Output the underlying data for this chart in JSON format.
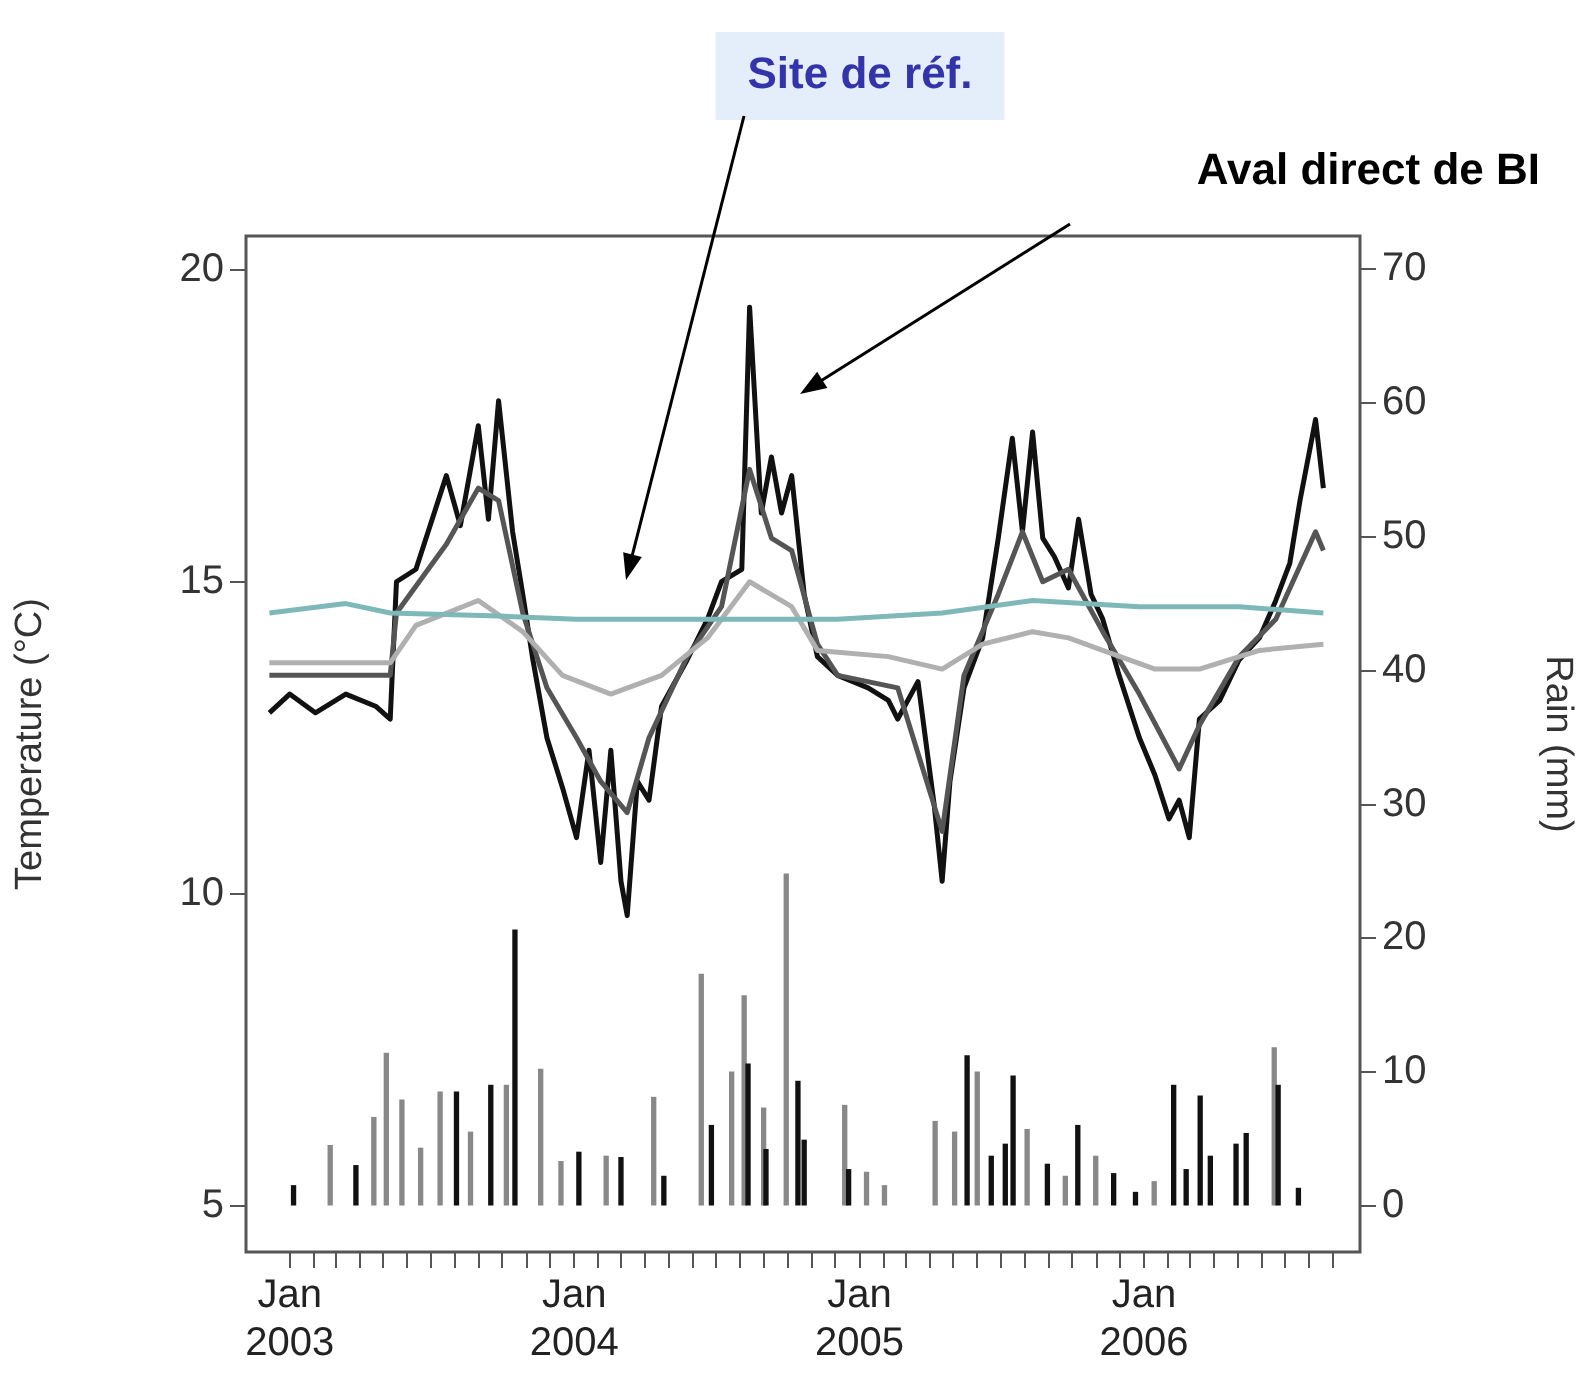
{
  "chart_data": {
    "type": "line",
    "ylabel": "Temperature (°C)",
    "y2label": "Rain (mm)",
    "xlim": [
      "2002-11-06",
      "2006-10-05"
    ],
    "ylim": [
      4.26,
      20.54
    ],
    "yticks": [
      5,
      10,
      15,
      20
    ],
    "y2lim": [
      -3.45,
      72.5
    ],
    "y2ticks": [
      0,
      10,
      20,
      30,
      40,
      50,
      60,
      70
    ],
    "xticks": [
      {
        "value": "2003-01-01",
        "label": "Jan\n2003"
      },
      {
        "value": "2003-02-01",
        "label": null
      },
      {
        "value": "2003-03-01",
        "label": null
      },
      {
        "value": "2003-04-01",
        "label": null
      },
      {
        "value": "2003-05-01",
        "label": null
      },
      {
        "value": "2003-06-01",
        "label": null
      },
      {
        "value": "2003-07-01",
        "label": null
      },
      {
        "value": "2003-08-01",
        "label": null
      },
      {
        "value": "2003-09-01",
        "label": null
      },
      {
        "value": "2003-10-01",
        "label": null
      },
      {
        "value": "2003-11-01",
        "label": null
      },
      {
        "value": "2003-12-01",
        "label": null
      },
      {
        "value": "2004-01-01",
        "label": "Jan\n2004"
      },
      {
        "value": "2004-02-01",
        "label": null
      },
      {
        "value": "2004-03-01",
        "label": null
      },
      {
        "value": "2004-04-01",
        "label": null
      },
      {
        "value": "2004-05-01",
        "label": null
      },
      {
        "value": "2004-06-01",
        "label": null
      },
      {
        "value": "2004-07-01",
        "label": null
      },
      {
        "value": "2004-08-01",
        "label": null
      },
      {
        "value": "2004-09-01",
        "label": null
      },
      {
        "value": "2004-10-01",
        "label": null
      },
      {
        "value": "2004-11-01",
        "label": null
      },
      {
        "value": "2004-12-01",
        "label": null
      },
      {
        "value": "2005-01-01",
        "label": "Jan\n2005"
      },
      {
        "value": "2005-02-01",
        "label": null
      },
      {
        "value": "2005-03-01",
        "label": null
      },
      {
        "value": "2005-04-01",
        "label": null
      },
      {
        "value": "2005-05-01",
        "label": null
      },
      {
        "value": "2005-06-01",
        "label": null
      },
      {
        "value": "2005-07-01",
        "label": null
      },
      {
        "value": "2005-08-01",
        "label": null
      },
      {
        "value": "2005-09-01",
        "label": null
      },
      {
        "value": "2005-10-01",
        "label": null
      },
      {
        "value": "2005-11-01",
        "label": null
      },
      {
        "value": "2005-12-01",
        "label": null
      },
      {
        "value": "2006-01-01",
        "label": "Jan\n2006"
      },
      {
        "value": "2006-02-01",
        "label": null
      },
      {
        "value": "2006-03-01",
        "label": null
      },
      {
        "value": "2006-04-01",
        "label": null
      },
      {
        "value": "2006-05-01",
        "label": null
      },
      {
        "value": "2006-06-01",
        "label": null
      },
      {
        "value": "2006-07-01",
        "label": null
      },
      {
        "value": "2006-08-01",
        "label": null
      },
      {
        "value": "2006-09-01",
        "label": null
      }
    ],
    "marker": "none",
    "legend": false,
    "grid": false,
    "series": [
      {
        "type": "bar",
        "axis": "y2",
        "x": [
          "2003-01-06",
          "2003-02-22",
          "2003-03-27",
          "2003-04-19",
          "2003-05-05",
          "2003-05-25",
          "2003-06-18",
          "2003-07-13",
          "2003-08-03",
          "2003-08-21",
          "2003-09-16",
          "2003-10-06",
          "2003-10-17",
          "2003-11-19",
          "2003-12-15",
          "2004-01-07",
          "2004-02-11",
          "2004-03-01",
          "2004-04-12",
          "2004-04-25",
          "2004-06-12",
          "2004-06-25",
          "2004-07-21",
          "2004-08-06",
          "2004-08-11",
          "2004-08-31",
          "2004-09-03",
          "2004-09-29",
          "2004-10-14",
          "2004-10-22",
          "2004-12-13",
          "2004-12-18",
          "2005-01-10",
          "2005-02-02",
          "2005-04-08",
          "2005-05-03",
          "2005-05-19",
          "2005-06-01",
          "2005-06-19",
          "2005-07-07",
          "2005-07-17",
          "2005-08-04",
          "2005-08-30",
          "2005-09-22",
          "2005-10-08",
          "2005-10-31",
          "2005-11-23",
          "2005-12-21",
          "2006-01-14",
          "2006-02-08",
          "2006-02-24",
          "2006-03-14",
          "2006-03-27",
          "2006-04-29",
          "2006-05-12",
          "2006-06-17",
          "2006-06-22",
          "2006-07-18"
        ],
        "values": [
          1.5,
          4.5,
          3,
          6.6,
          11.4,
          7.9,
          4.3,
          8.5,
          8.5,
          5.5,
          9,
          9,
          20.6,
          10.2,
          3.3,
          4,
          3.7,
          3.6,
          8.1,
          2.2,
          17.3,
          6,
          10,
          15.7,
          10.6,
          7.3,
          4.2,
          24.8,
          9.3,
          4.9,
          7.5,
          2.7,
          2.5,
          1.5,
          6.3,
          5.5,
          11.2,
          10,
          3.7,
          4.6,
          9.7,
          5.7,
          3.1,
          2.2,
          6,
          3.7,
          2.4,
          1,
          1.8,
          9,
          2.7,
          8.2,
          3.7,
          4.6,
          5.4,
          11.8,
          9,
          1.3
        ],
        "colors": [
          "#111111",
          "#888888",
          "#111111",
          "#888888",
          "#888888",
          "#888888",
          "#888888",
          "#888888",
          "#111111",
          "#888888",
          "#111111",
          "#888888",
          "#111111",
          "#888888",
          "#888888",
          "#111111",
          "#888888",
          "#111111",
          "#888888",
          "#111111",
          "#888888",
          "#111111",
          "#888888",
          "#888888",
          "#111111",
          "#888888",
          "#111111",
          "#888888",
          "#111111",
          "#111111",
          "#888888",
          "#111111",
          "#888888",
          "#888888",
          "#888888",
          "#888888",
          "#111111",
          "#888888",
          "#111111",
          "#111111",
          "#111111",
          "#888888",
          "#111111",
          "#888888",
          "#111111",
          "#888888",
          "#111111",
          "#111111",
          "#888888",
          "#111111",
          "#111111",
          "#111111",
          "#111111",
          "#111111",
          "#111111",
          "#888888",
          "#111111",
          "#111111"
        ]
      },
      {
        "color": "#7fb8b8",
        "x": [
          "2002-12-06",
          "2003-03-14",
          "2003-05-10",
          "2003-09-26",
          "2004-01-04",
          "2004-04-22",
          "2004-08-13",
          "2004-12-04",
          "2005-04-17",
          "2005-08-11",
          "2005-12-26",
          "2006-05-03",
          "2006-08-19"
        ],
        "values": [
          14.5,
          14.65,
          14.5,
          14.45,
          14.4,
          14.4,
          14.4,
          14.4,
          14.5,
          14.7,
          14.6,
          14.6,
          14.5
        ]
      },
      {
        "color": "#b0b0b0",
        "x": [
          "2002-12-06",
          "2003-05-10",
          "2003-06-12",
          "2003-08-31",
          "2003-10-27",
          "2003-12-17",
          "2004-02-17",
          "2004-04-22",
          "2004-06-20",
          "2004-08-13",
          "2004-10-06",
          "2004-11-08",
          "2005-02-07",
          "2005-04-17",
          "2005-06-08",
          "2005-08-11",
          "2005-09-26",
          "2005-11-09",
          "2006-01-15",
          "2006-03-13",
          "2006-05-29",
          "2006-08-19"
        ],
        "values": [
          13.7,
          13.7,
          14.3,
          14.7,
          14.2,
          13.5,
          13.2,
          13.5,
          14.1,
          15,
          14.6,
          13.9,
          13.8,
          13.6,
          14,
          14.2,
          14.1,
          13.9,
          13.6,
          13.6,
          13.9,
          14
        ]
      },
      {
        "color": "#555555",
        "x": [
          "2002-12-06",
          "2003-05-10",
          "2003-05-18",
          "2003-07-21",
          "2003-08-31",
          "2003-09-26",
          "2003-10-27",
          "2003-11-27",
          "2004-01-04",
          "2004-02-04",
          "2004-03-09",
          "2004-04-06",
          "2004-05-25",
          "2004-07-08",
          "2004-08-13",
          "2004-09-10",
          "2004-10-06",
          "2004-11-08",
          "2004-12-04",
          "2005-02-19",
          "2005-04-17",
          "2005-05-15",
          "2005-06-28",
          "2005-07-29",
          "2005-08-24",
          "2005-09-26",
          "2005-11-09",
          "2005-12-26",
          "2006-02-15",
          "2006-03-13",
          "2006-05-03",
          "2006-06-19",
          "2006-08-09",
          "2006-08-19"
        ],
        "values": [
          13.5,
          13.5,
          14.5,
          15.6,
          16.5,
          16.3,
          14.5,
          13.3,
          12.5,
          11.8,
          11.3,
          12.5,
          13.8,
          14.6,
          16.8,
          15.7,
          15.5,
          14,
          13.5,
          13.3,
          11,
          13.5,
          14.8,
          15.8,
          15,
          15.2,
          14.2,
          13.2,
          12,
          12.7,
          13.8,
          14.4,
          15.8,
          15.5
        ]
      },
      {
        "color": "#111111",
        "x": [
          "2002-12-06",
          "2003-01-01",
          "2003-02-03",
          "2003-03-14",
          "2003-04-22",
          "2003-05-10",
          "2003-05-18",
          "2003-06-12",
          "2003-07-21",
          "2003-08-08",
          "2003-08-31",
          "2003-09-13",
          "2003-09-26",
          "2003-10-14",
          "2003-10-27",
          "2003-11-09",
          "2003-11-27",
          "2003-12-17",
          "2004-01-04",
          "2004-01-20",
          "2004-02-04",
          "2004-02-17",
          "2004-03-01",
          "2004-03-09",
          "2004-03-22",
          "2004-04-06",
          "2004-04-22",
          "2004-05-25",
          "2004-06-20",
          "2004-07-08",
          "2004-08-03",
          "2004-08-13",
          "2004-08-28",
          "2004-09-10",
          "2004-09-23",
          "2004-10-06",
          "2004-10-22",
          "2004-11-08",
          "2004-12-04",
          "2005-01-12",
          "2005-02-07",
          "2005-02-19",
          "2005-03-17",
          "2005-04-07",
          "2005-04-17",
          "2005-04-27",
          "2005-05-15",
          "2005-06-08",
          "2005-06-28",
          "2005-07-16",
          "2005-07-29",
          "2005-08-11",
          "2005-08-24",
          "2005-09-08",
          "2005-09-26",
          "2005-10-09",
          "2005-10-25",
          "2005-11-09",
          "2005-11-30",
          "2005-12-26",
          "2006-01-15",
          "2006-02-02",
          "2006-02-15",
          "2006-02-28",
          "2006-03-13",
          "2006-04-08",
          "2006-05-03",
          "2006-05-29",
          "2006-06-19",
          "2006-07-07",
          "2006-07-20",
          "2006-08-09",
          "2006-08-19"
        ],
        "values": [
          12.9,
          13.2,
          12.9,
          13.2,
          13,
          12.8,
          15,
          15.2,
          16.7,
          15.9,
          17.5,
          16,
          17.9,
          15.8,
          14.8,
          13.75,
          12.5,
          11.7,
          10.9,
          12.3,
          10.5,
          12.3,
          10.2,
          9.65,
          11.8,
          11.5,
          13,
          13.75,
          14.4,
          15,
          15.2,
          19.4,
          16.1,
          17,
          16.1,
          16.7,
          14.8,
          13.8,
          13.5,
          13.3,
          13.1,
          12.8,
          13.4,
          11.4,
          10.2,
          11.8,
          13.3,
          14.1,
          15.7,
          17.3,
          15.8,
          17.4,
          15.7,
          15.4,
          14.9,
          16,
          14.8,
          14.4,
          13.5,
          12.5,
          11.9,
          11.2,
          11.5,
          10.9,
          12.8,
          13.1,
          13.75,
          14.1,
          14.7,
          15.3,
          16.3,
          17.6,
          16.5
        ]
      }
    ],
    "annotations": [
      "Site de réf.",
      "Aval direct de BI"
    ]
  }
}
